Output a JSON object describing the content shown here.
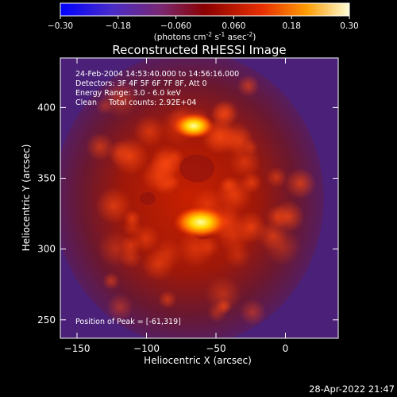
{
  "chart_data": {
    "type": "heatmap",
    "title": "Reconstructed RHESSI Image",
    "xlabel": "Heliocentric X (arcsec)",
    "ylabel": "Heliocentric Y (arcsec)",
    "xlim": [
      -162,
      38
    ],
    "ylim": [
      237,
      435
    ],
    "x_ticks": [
      -150,
      -100,
      -50,
      0
    ],
    "y_ticks": [
      250,
      300,
      350,
      400
    ],
    "colorbar": {
      "min": -0.3,
      "max": 0.3,
      "ticks": [
        "-0.30",
        "-0.18",
        "-0.060",
        "0.060",
        "0.18",
        "0.30"
      ],
      "units_prefix": "(photons cm",
      "units_exp1": "-2",
      "units_mid": " s",
      "units_exp2": "-1",
      "units_mid2": " asec",
      "units_exp3": "-2",
      "units_suffix": ")"
    },
    "annotations": [
      "24-Feb-2004 14:53:40.000 to 14:56:16.000",
      "Detectors: 3F 4F 5F 6F 7F 8F, Att 0",
      "Energy Range: 3.0 - 6.0 keV",
      "Clean     Total counts: 2.92E+04"
    ],
    "peak_label": "Position of Peak = [-61,319]",
    "peak": [
      -61,
      319
    ],
    "sources": [
      {
        "x": -61,
        "y": 319,
        "intensity": 0.3
      },
      {
        "x": -66,
        "y": 387,
        "intensity": 0.22
      }
    ]
  },
  "footer": {
    "timestamp": "28-Apr-2022 21:47"
  }
}
